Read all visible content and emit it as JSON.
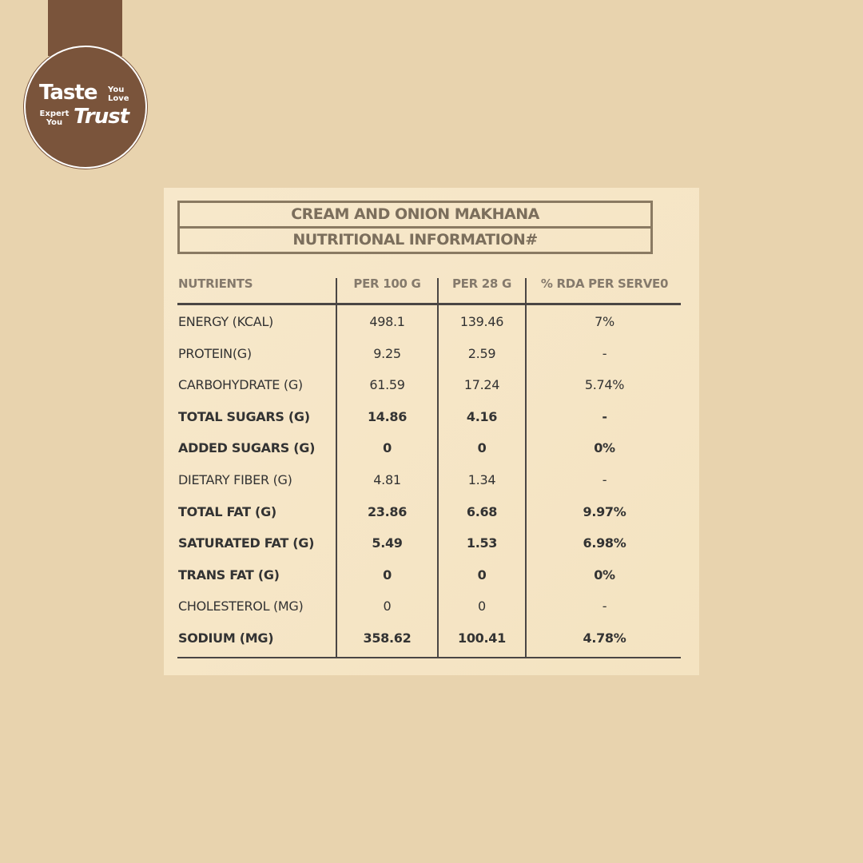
{
  "logo": {
    "taste": "Taste",
    "you_love": "You Love",
    "expert_you": "Expert You",
    "trust": "Trust",
    "color": "#7a543b"
  },
  "title": "CREAM AND ONION MAKHANA",
  "subtitle": "NUTRITIONAL INFORMATION#",
  "columns": [
    "NUTRIENTS",
    "PER 100 G",
    "PER 28 G",
    "% RDA PER SERVE0"
  ],
  "rows": [
    {
      "name": "ENERGY (KCAL)",
      "per100": "498.1",
      "per28": "139.46",
      "rda": "7%",
      "bold": false
    },
    {
      "name": "PROTEIN(G)",
      "per100": "9.25",
      "per28": "2.59",
      "rda": "-",
      "bold": false
    },
    {
      "name": "CARBOHYDRATE (G)",
      "per100": "61.59",
      "per28": "17.24",
      "rda": "5.74%",
      "bold": false
    },
    {
      "name": "TOTAL SUGARS (G)",
      "per100": "14.86",
      "per28": "4.16",
      "rda": "-",
      "bold": true
    },
    {
      "name": "ADDED SUGARS (G)",
      "per100": "0",
      "per28": "0",
      "rda": "0%",
      "bold": true
    },
    {
      "name": "DIETARY FIBER (G)",
      "per100": "4.81",
      "per28": "1.34",
      "rda": "-",
      "bold": false
    },
    {
      "name": "TOTAL FAT (G)",
      "per100": "23.86",
      "per28": "6.68",
      "rda": "9.97%",
      "bold": true
    },
    {
      "name": "SATURATED FAT (G)",
      "per100": "5.49",
      "per28": "1.53",
      "rda": "6.98%",
      "bold": true
    },
    {
      "name": "TRANS FAT (G)",
      "per100": "0",
      "per28": "0",
      "rda": "0%",
      "bold": true
    },
    {
      "name": "CHOLESTEROL (MG)",
      "per100": "0",
      "per28": "0",
      "rda": "-",
      "bold": false
    },
    {
      "name": "SODIUM (MG)",
      "per100": "358.62",
      "per28": "100.41",
      "rda": "4.78%",
      "bold": true
    }
  ]
}
